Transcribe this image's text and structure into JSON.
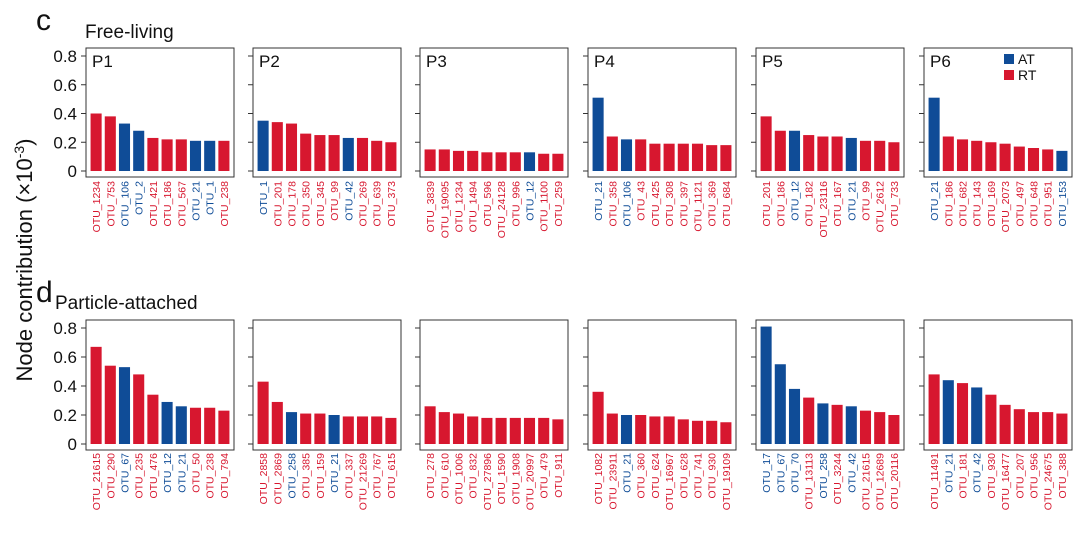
{
  "figure": {
    "ylabel": "Node contribution (×10⁻³)",
    "ylabel_main": "Node contribution (×10",
    "ylabel_exp": "-3",
    "ylabel_close": ")",
    "y_ticks": [
      "0",
      "0.2",
      "0.4",
      "0.6",
      "0.8"
    ],
    "legend": [
      {
        "label": "AT",
        "color": "#0f4c97"
      },
      {
        "label": "RT",
        "color": "#d7172f"
      }
    ],
    "colors": {
      "AT": "#0f4c97",
      "RT": "#d7172f"
    }
  },
  "chart_data": [
    {
      "type": "bar",
      "row": "c",
      "title": "Free-living",
      "ylabel": "Node contribution (×10⁻³)",
      "ylim": [
        0,
        0.85
      ],
      "panels": [
        {
          "label": "P1",
          "categories": [
            "OTU_1234",
            "OTU_753",
            "OTU_106",
            "OTU_2",
            "OTU_421",
            "OTU_186",
            "OTU_567",
            "OTU_21",
            "OTU_1",
            "OTU_238"
          ],
          "values": [
            0.4,
            0.38,
            0.33,
            0.28,
            0.23,
            0.22,
            0.22,
            0.21,
            0.21,
            0.21
          ],
          "groups": [
            "RT",
            "RT",
            "AT",
            "AT",
            "RT",
            "RT",
            "RT",
            "AT",
            "AT",
            "RT"
          ]
        },
        {
          "label": "P2",
          "categories": [
            "OTU_1",
            "OTU_201",
            "OTU_178",
            "OTU_350",
            "OTU_345",
            "OTU_99",
            "OTU_42",
            "OTU_269",
            "OTU_639",
            "OTU_373"
          ],
          "values": [
            0.35,
            0.34,
            0.33,
            0.26,
            0.25,
            0.25,
            0.23,
            0.23,
            0.21,
            0.2
          ],
          "groups": [
            "AT",
            "RT",
            "RT",
            "RT",
            "RT",
            "RT",
            "AT",
            "RT",
            "RT",
            "RT"
          ]
        },
        {
          "label": "P3",
          "categories": [
            "OTU_3839",
            "OTU_19095",
            "OTU_1234",
            "OTU_1494",
            "OTU_596",
            "OTU_24128",
            "OTU_996",
            "OTU_12",
            "OTU_1100",
            "OTU_259"
          ],
          "values": [
            0.15,
            0.15,
            0.14,
            0.14,
            0.13,
            0.13,
            0.13,
            0.13,
            0.12,
            0.12
          ],
          "groups": [
            "RT",
            "RT",
            "RT",
            "RT",
            "RT",
            "RT",
            "RT",
            "AT",
            "RT",
            "RT"
          ]
        },
        {
          "label": "P4",
          "categories": [
            "OTU_21",
            "OTU_358",
            "OTU_106",
            "OTU_43",
            "OTU_425",
            "OTU_308",
            "OTU_397",
            "OTU_1121",
            "OTU_369",
            "OTU_684"
          ],
          "values": [
            0.51,
            0.24,
            0.22,
            0.22,
            0.19,
            0.19,
            0.19,
            0.19,
            0.18,
            0.18
          ],
          "groups": [
            "AT",
            "RT",
            "AT",
            "RT",
            "RT",
            "RT",
            "RT",
            "RT",
            "RT",
            "RT"
          ]
        },
        {
          "label": "P5",
          "categories": [
            "OTU_201",
            "OTU_186",
            "OTU_12",
            "OTU_182",
            "OTU_23116",
            "OTU_167",
            "OTU_21",
            "OTU_99",
            "OTU_2612",
            "OTU_733"
          ],
          "values": [
            0.38,
            0.28,
            0.28,
            0.25,
            0.24,
            0.24,
            0.23,
            0.21,
            0.21,
            0.2
          ],
          "groups": [
            "RT",
            "RT",
            "AT",
            "RT",
            "RT",
            "RT",
            "AT",
            "RT",
            "RT",
            "RT"
          ]
        },
        {
          "label": "P6",
          "categories": [
            "OTU_21",
            "OTU_186",
            "OTU_682",
            "OTU_143",
            "OTU_169",
            "OTU_2073",
            "OTU_497",
            "OTU_648",
            "OTU_951",
            "OTU_153"
          ],
          "values": [
            0.51,
            0.24,
            0.22,
            0.21,
            0.2,
            0.19,
            0.17,
            0.16,
            0.15,
            0.14
          ],
          "groups": [
            "AT",
            "RT",
            "RT",
            "RT",
            "RT",
            "RT",
            "RT",
            "RT",
            "RT",
            "AT"
          ]
        }
      ]
    },
    {
      "type": "bar",
      "row": "d",
      "title": "Particle-attached",
      "ylabel": "Node contribution (×10⁻³)",
      "ylim": [
        0,
        0.85
      ],
      "panels": [
        {
          "label": "",
          "categories": [
            "OTU_21615",
            "OTU_290",
            "OTU_67",
            "OTU_235",
            "OTU_476",
            "OTU_12",
            "OTU_21",
            "OTU_50",
            "OTU_238",
            "OTU_794"
          ],
          "values": [
            0.67,
            0.54,
            0.53,
            0.48,
            0.34,
            0.29,
            0.26,
            0.25,
            0.25,
            0.23
          ],
          "groups": [
            "RT",
            "RT",
            "AT",
            "RT",
            "RT",
            "AT",
            "AT",
            "RT",
            "RT",
            "RT"
          ]
        },
        {
          "label": "",
          "categories": [
            "OTU_2858",
            "OTU_2869",
            "OTU_258",
            "OTU_385",
            "OTU_159",
            "OTU_21",
            "OTU_337",
            "OTU_21269",
            "OTU_767",
            "OTU_615"
          ],
          "values": [
            0.43,
            0.29,
            0.22,
            0.21,
            0.21,
            0.2,
            0.19,
            0.19,
            0.19,
            0.18
          ],
          "groups": [
            "RT",
            "RT",
            "AT",
            "RT",
            "RT",
            "AT",
            "RT",
            "RT",
            "RT",
            "RT"
          ]
        },
        {
          "label": "",
          "categories": [
            "OTU_278",
            "OTU_610",
            "OTU_1006",
            "OTU_832",
            "OTU_27896",
            "OTU_1590",
            "OTU_1908",
            "OTU_20997",
            "OTU_479",
            "OTU_911"
          ],
          "values": [
            0.26,
            0.22,
            0.21,
            0.19,
            0.18,
            0.18,
            0.18,
            0.18,
            0.18,
            0.17
          ],
          "groups": [
            "RT",
            "RT",
            "RT",
            "RT",
            "RT",
            "RT",
            "RT",
            "RT",
            "RT",
            "RT"
          ]
        },
        {
          "label": "",
          "categories": [
            "OTU_1082",
            "OTU_23911",
            "OTU_21",
            "OTU_360",
            "OTU_624",
            "OTU_16967",
            "OTU_628",
            "OTU_741",
            "OTU_930",
            "OTU_19109"
          ],
          "values": [
            0.36,
            0.21,
            0.2,
            0.2,
            0.19,
            0.19,
            0.17,
            0.16,
            0.16,
            0.15
          ],
          "groups": [
            "RT",
            "RT",
            "AT",
            "RT",
            "RT",
            "RT",
            "RT",
            "RT",
            "RT",
            "RT"
          ]
        },
        {
          "label": "",
          "categories": [
            "OTU_17",
            "OTU_67",
            "OTU_70",
            "OTU_13113",
            "OTU_258",
            "OTU_3244",
            "OTU_42",
            "OTU_21615",
            "OTU_12689",
            "OTU_20116"
          ],
          "values": [
            0.81,
            0.55,
            0.38,
            0.32,
            0.28,
            0.27,
            0.26,
            0.23,
            0.22,
            0.2
          ],
          "groups": [
            "AT",
            "AT",
            "AT",
            "RT",
            "AT",
            "RT",
            "AT",
            "RT",
            "RT",
            "RT"
          ]
        },
        {
          "label": "",
          "categories": [
            "OTU_11491",
            "OTU_21",
            "OTU_181",
            "OTU_42",
            "OTU_930",
            "OTU_16477",
            "OTU_207",
            "OTU_956",
            "OTU_24675",
            "OTU_388"
          ],
          "values": [
            0.48,
            0.44,
            0.42,
            0.39,
            0.34,
            0.27,
            0.24,
            0.22,
            0.22,
            0.21
          ],
          "groups": [
            "RT",
            "AT",
            "RT",
            "AT",
            "RT",
            "RT",
            "RT",
            "RT",
            "RT",
            "RT"
          ]
        }
      ]
    }
  ]
}
